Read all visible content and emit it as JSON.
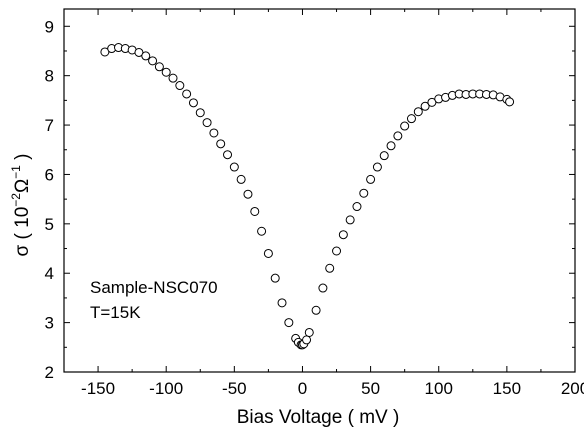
{
  "chart_data": {
    "type": "scatter",
    "title": "",
    "xlabel": "Bias Voltage ( mV )",
    "ylabel": {
      "base": "σ ( 10",
      "exp1": "−2",
      "mid": "Ω",
      "exp2": "−1",
      "end": " )"
    },
    "xlim": [
      -175,
      200
    ],
    "ylim": [
      2,
      9.35
    ],
    "xticks": [
      -150,
      -100,
      -50,
      0,
      50,
      100,
      150,
      200
    ],
    "xtick_labels": [
      "-150",
      "-100",
      "-50",
      "0",
      "50",
      "100",
      "150",
      "200"
    ],
    "yticks": [
      2,
      3,
      4,
      5,
      6,
      7,
      8,
      9
    ],
    "ytick_labels": [
      "2",
      "3",
      "4",
      "5",
      "6",
      "7",
      "8",
      "9"
    ],
    "grid": false,
    "annotations": [
      "Sample-NSC070",
      "T=15K"
    ],
    "marker": "open-circle",
    "series": [
      {
        "x": [
          -145,
          -140,
          -135,
          -130,
          -125,
          -120,
          -115,
          -110,
          -105,
          -100,
          -95,
          -90,
          -85,
          -80,
          -75,
          -70,
          -65,
          -60,
          -55,
          -50,
          -45,
          -40,
          -35,
          -30,
          -25,
          -20,
          -15,
          -10,
          -5,
          -3,
          -1,
          0,
          1,
          3,
          5,
          10,
          15,
          20,
          25,
          30,
          35,
          40,
          45,
          50,
          55,
          60,
          65,
          70,
          75,
          80,
          85,
          90,
          95,
          100,
          105,
          110,
          115,
          120,
          125,
          130,
          135,
          140,
          145,
          150,
          152
        ],
        "y": [
          8.48,
          8.55,
          8.57,
          8.55,
          8.52,
          8.47,
          8.4,
          8.3,
          8.18,
          8.07,
          7.95,
          7.8,
          7.63,
          7.45,
          7.25,
          7.05,
          6.84,
          6.62,
          6.4,
          6.15,
          5.9,
          5.6,
          5.25,
          4.85,
          4.4,
          3.9,
          3.4,
          3.0,
          2.68,
          2.6,
          2.55,
          2.55,
          2.57,
          2.65,
          2.8,
          3.25,
          3.7,
          4.1,
          4.45,
          4.78,
          5.08,
          5.35,
          5.62,
          5.9,
          6.15,
          6.38,
          6.58,
          6.78,
          6.98,
          7.13,
          7.27,
          7.38,
          7.46,
          7.53,
          7.56,
          7.6,
          7.63,
          7.62,
          7.63,
          7.63,
          7.62,
          7.61,
          7.57,
          7.52,
          7.47
        ]
      }
    ]
  }
}
